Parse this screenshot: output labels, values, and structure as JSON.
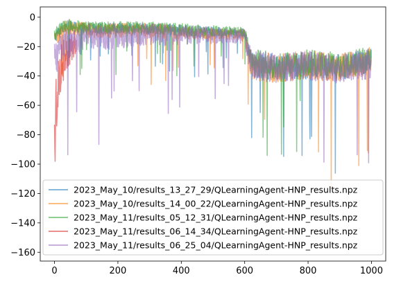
{
  "chart_data": {
    "type": "line",
    "title": "",
    "xlabel": "",
    "ylabel": "",
    "xlim": [
      -45,
      1045
    ],
    "ylim": [
      -166,
      7
    ],
    "xticks": [
      0,
      200,
      400,
      600,
      800,
      1000
    ],
    "yticks": [
      0,
      -20,
      -40,
      -60,
      -80,
      -100,
      -120,
      -140,
      -160
    ],
    "grid": false,
    "legend_position": "lower-right",
    "series": [
      {
        "name": "2023_May_10/results_13_27_29/QLearningAgent-HNP_results.npz",
        "color": "#1f77b4",
        "num_points": 1000,
        "keypoints": [
          [
            0,
            -14
          ],
          [
            30,
            -6
          ],
          [
            100,
            -8
          ],
          [
            300,
            -8
          ],
          [
            450,
            -10
          ],
          [
            600,
            -11
          ],
          [
            620,
            -32
          ],
          [
            700,
            -34
          ],
          [
            800,
            -33
          ],
          [
            900,
            -34
          ],
          [
            999,
            -30
          ]
        ],
        "noise": [
          4,
          4,
          4,
          4,
          4,
          3,
          9,
          9,
          9,
          9,
          9
        ]
      },
      {
        "name": "2023_May_10/results_14_00_22/QLearningAgent-HNP_results.npz",
        "color": "#ff7f0e",
        "num_points": 1000,
        "keypoints": [
          [
            0,
            -16
          ],
          [
            30,
            -6
          ],
          [
            100,
            -9
          ],
          [
            300,
            -9
          ],
          [
            450,
            -11
          ],
          [
            600,
            -12
          ],
          [
            620,
            -33
          ],
          [
            700,
            -35
          ],
          [
            800,
            -32
          ],
          [
            900,
            -35
          ],
          [
            999,
            -30
          ]
        ],
        "noise": [
          5,
          5,
          5,
          5,
          4,
          4,
          10,
          10,
          10,
          10,
          10
        ]
      },
      {
        "name": "2023_May_11/results_05_12_31/QLearningAgent-HNP_results.npz",
        "color": "#2ca02c",
        "num_points": 1000,
        "keypoints": [
          [
            0,
            -12
          ],
          [
            30,
            -5
          ],
          [
            100,
            -7
          ],
          [
            300,
            -7
          ],
          [
            450,
            -9
          ],
          [
            600,
            -10
          ],
          [
            620,
            -30
          ],
          [
            700,
            -33
          ],
          [
            800,
            -31
          ],
          [
            900,
            -33
          ],
          [
            999,
            -29
          ]
        ],
        "noise": [
          4,
          4,
          4,
          4,
          4,
          3,
          9,
          9,
          9,
          9,
          9
        ]
      },
      {
        "name": "2023_May_11/results_06_14_34/QLearningAgent-HNP_results.npz",
        "color": "#d62728",
        "num_points": 70,
        "keypoints": [
          [
            0,
            -90
          ],
          [
            5,
            -60
          ],
          [
            15,
            -40
          ],
          [
            25,
            -30
          ],
          [
            40,
            -25
          ],
          [
            55,
            -20
          ],
          [
            69,
            -15
          ]
        ],
        "noise": [
          20,
          25,
          18,
          15,
          12,
          10,
          8
        ]
      },
      {
        "name": "2023_May_11/results_06_25_04/QLearningAgent-HNP_results.npz",
        "color": "#9467bd",
        "num_points": 1000,
        "keypoints": [
          [
            0,
            -30
          ],
          [
            20,
            -20
          ],
          [
            100,
            -14
          ],
          [
            300,
            -12
          ],
          [
            450,
            -12
          ],
          [
            600,
            -13
          ],
          [
            620,
            -32
          ],
          [
            700,
            -35
          ],
          [
            800,
            -33
          ],
          [
            900,
            -35
          ],
          [
            999,
            -32
          ]
        ],
        "noise": [
          12,
          10,
          9,
          8,
          6,
          5,
          10,
          10,
          10,
          10,
          10
        ]
      }
    ]
  }
}
